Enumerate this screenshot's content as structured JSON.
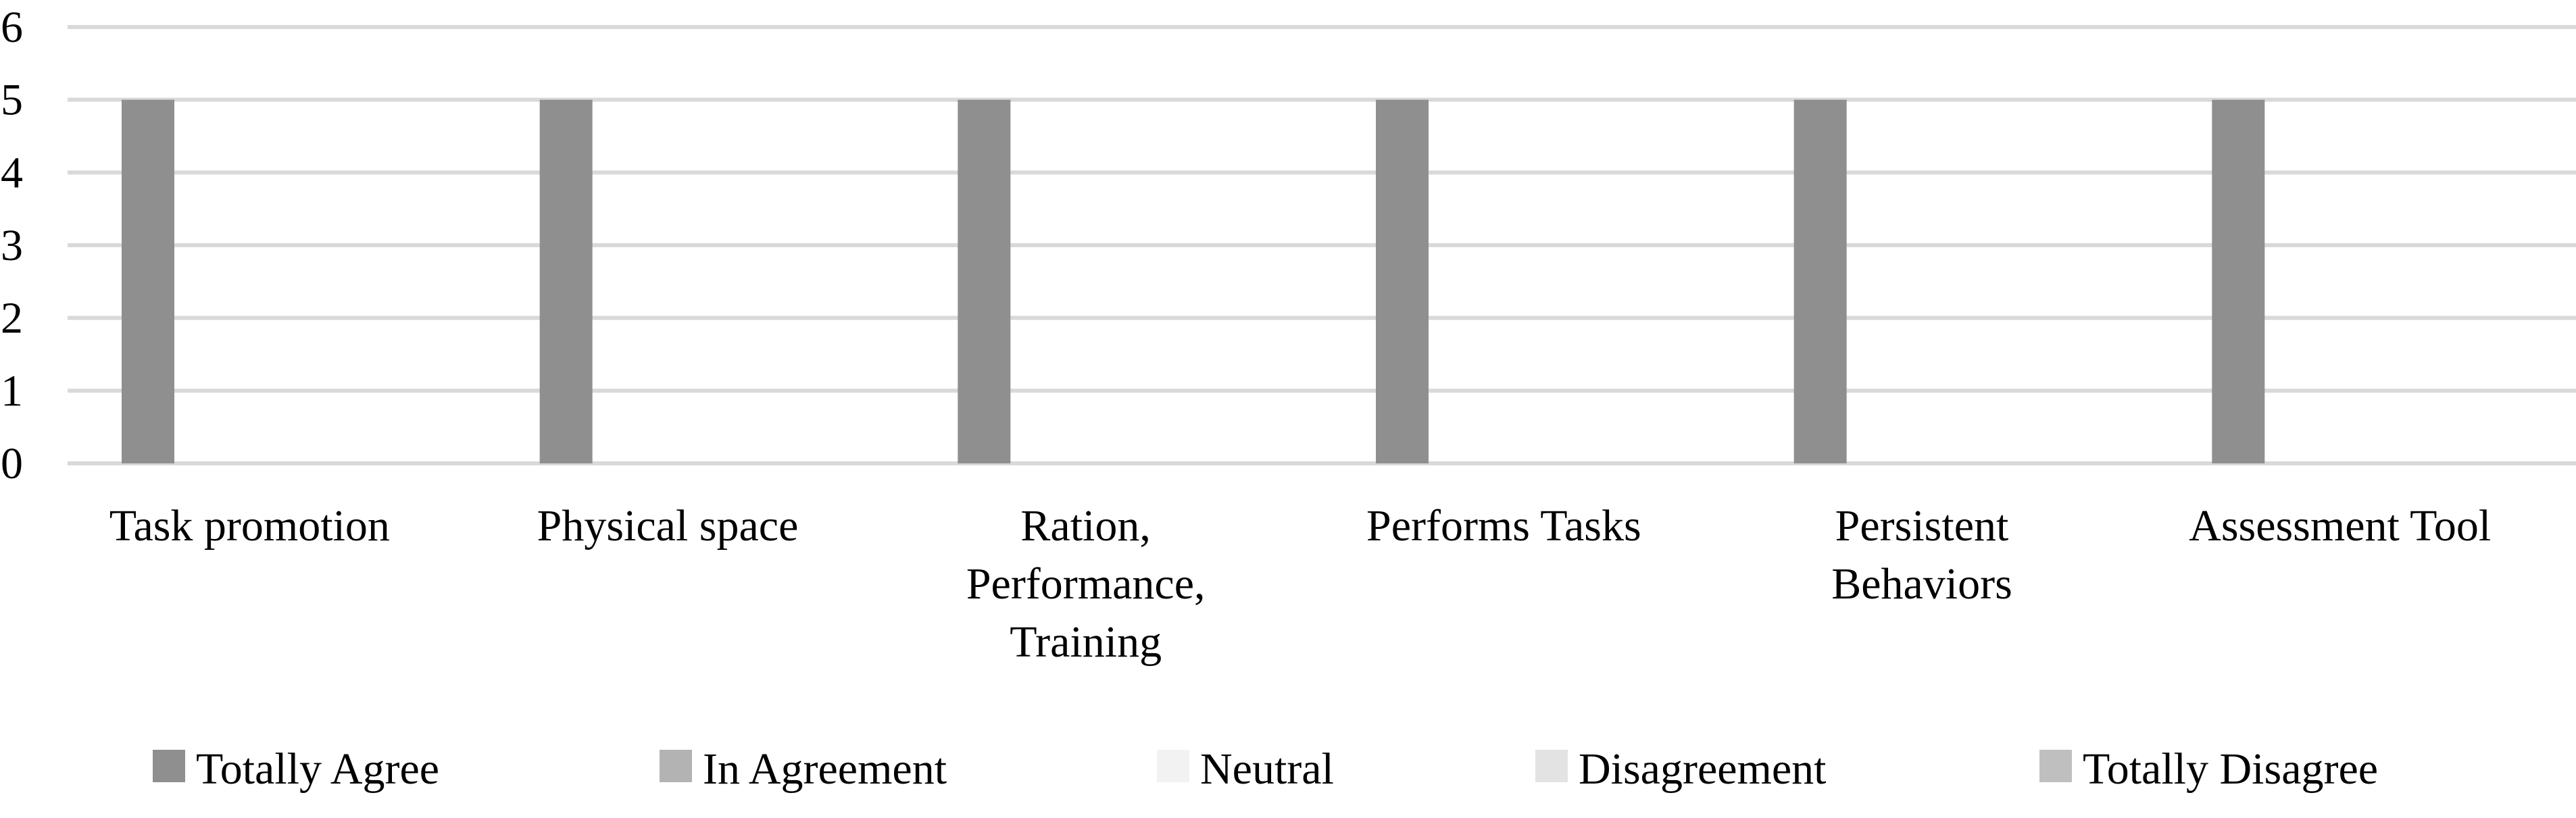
{
  "chart_data": {
    "type": "bar",
    "title": "",
    "xlabel": "",
    "ylabel": "",
    "ylim": [
      0,
      6
    ],
    "yticks": [
      0,
      1,
      2,
      3,
      4,
      5,
      6
    ],
    "grid": true,
    "legend_position": "bottom",
    "categories": [
      [
        "Task promotion"
      ],
      [
        "Physical space"
      ],
      [
        "Ration,",
        "Performance,",
        "Training"
      ],
      [
        "Performs Tasks"
      ],
      [
        "Persistent",
        "Behaviors"
      ],
      [
        "Assessment Tool"
      ]
    ],
    "series": [
      {
        "name": "Totally Agree",
        "color": "#8f8f8f",
        "values": [
          5,
          5,
          5,
          5,
          5,
          5
        ]
      },
      {
        "name": "In Agreement",
        "color": "#b3b3b3",
        "values": [
          0,
          0,
          0,
          0,
          0,
          0
        ]
      },
      {
        "name": "Neutral",
        "color": "#f2f2f2",
        "values": [
          0,
          0,
          0,
          0,
          0,
          0
        ]
      },
      {
        "name": "Disagreement",
        "color": "#e3e3e3",
        "values": [
          0,
          0,
          0,
          0,
          0,
          0
        ]
      },
      {
        "name": "Totally Disagree",
        "color": "#bfbfbf",
        "values": [
          0,
          0,
          0,
          0,
          0,
          0
        ]
      }
    ]
  }
}
